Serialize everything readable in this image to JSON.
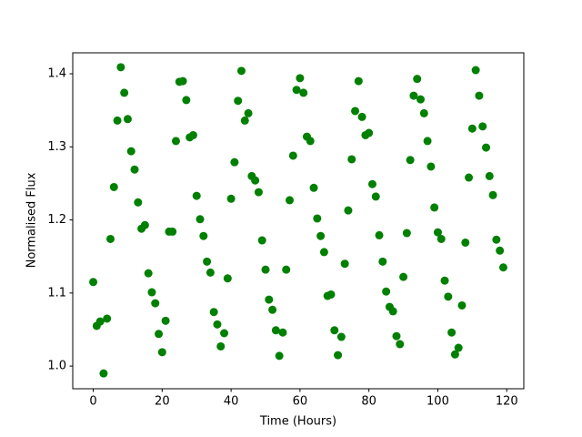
{
  "chart_data": {
    "type": "scatter",
    "xlabel": "Time (Hours)",
    "ylabel": "Normalised Flux",
    "color": "#008000",
    "x": [
      0,
      1,
      2,
      3,
      4,
      5,
      6,
      7,
      8,
      9,
      10,
      11,
      12,
      13,
      14,
      15,
      16,
      17,
      18,
      19,
      20,
      21,
      22,
      23,
      24,
      25,
      26,
      27,
      28,
      29,
      30,
      31,
      32,
      33,
      34,
      35,
      36,
      37,
      38,
      39,
      40,
      41,
      42,
      43,
      44,
      45,
      46,
      47,
      48,
      49,
      50,
      51,
      52,
      53,
      54,
      55,
      56,
      57,
      58,
      59,
      60,
      61,
      62,
      63,
      64,
      65,
      66,
      67,
      68,
      69,
      70,
      71,
      72,
      73,
      74,
      75,
      76,
      77,
      78,
      79,
      80,
      81,
      82,
      83,
      84,
      85,
      86,
      87,
      88,
      89,
      90,
      91,
      92,
      93,
      94,
      95,
      96,
      97,
      98,
      99,
      100,
      101,
      102,
      103,
      104,
      105,
      106,
      107,
      108,
      109,
      110,
      111,
      112,
      113,
      114,
      115,
      116,
      117,
      118,
      119
    ],
    "values": [
      1.115,
      1.055,
      1.061,
      0.99,
      1.065,
      1.174,
      1.245,
      1.336,
      1.409,
      1.374,
      1.338,
      1.294,
      1.269,
      1.224,
      1.188,
      1.193,
      1.127,
      1.101,
      1.086,
      1.044,
      1.019,
      1.062,
      1.184,
      1.184,
      1.308,
      1.389,
      1.39,
      1.364,
      1.313,
      1.316,
      1.233,
      1.201,
      1.178,
      1.143,
      1.128,
      1.074,
      1.057,
      1.027,
      1.045,
      1.12,
      1.229,
      1.279,
      1.363,
      1.404,
      1.336,
      1.346,
      1.26,
      1.254,
      1.238,
      1.172,
      1.132,
      1.091,
      1.077,
      1.049,
      1.014,
      1.046,
      1.132,
      1.227,
      1.288,
      1.378,
      1.394,
      1.374,
      1.314,
      1.308,
      1.244,
      1.202,
      1.178,
      1.156,
      1.096,
      1.098,
      1.049,
      1.015,
      1.04,
      1.14,
      1.213,
      1.283,
      1.349,
      1.39,
      1.341,
      1.316,
      1.319,
      1.249,
      1.232,
      1.179,
      1.143,
      1.102,
      1.081,
      1.075,
      1.041,
      1.03,
      1.122,
      1.182,
      1.282,
      1.37,
      1.393,
      1.365,
      1.346,
      1.308,
      1.273,
      1.217,
      1.183,
      1.174,
      1.117,
      1.095,
      1.046,
      1.016,
      1.025,
      1.083,
      1.169,
      1.258,
      1.325,
      1.405,
      1.37,
      1.328,
      1.299,
      1.26,
      1.234,
      1.173,
      1.158,
      1.135
    ],
    "xlim": [
      -5.95,
      124.95
    ],
    "ylim": [
      0.969,
      1.4287
    ],
    "xticks": [
      0,
      20,
      40,
      60,
      80,
      100,
      120
    ],
    "yticks": [
      {
        "value": 1,
        "label": "1.0"
      },
      1.1,
      1.2,
      1.3,
      1.4
    ],
    "grid": false
  }
}
